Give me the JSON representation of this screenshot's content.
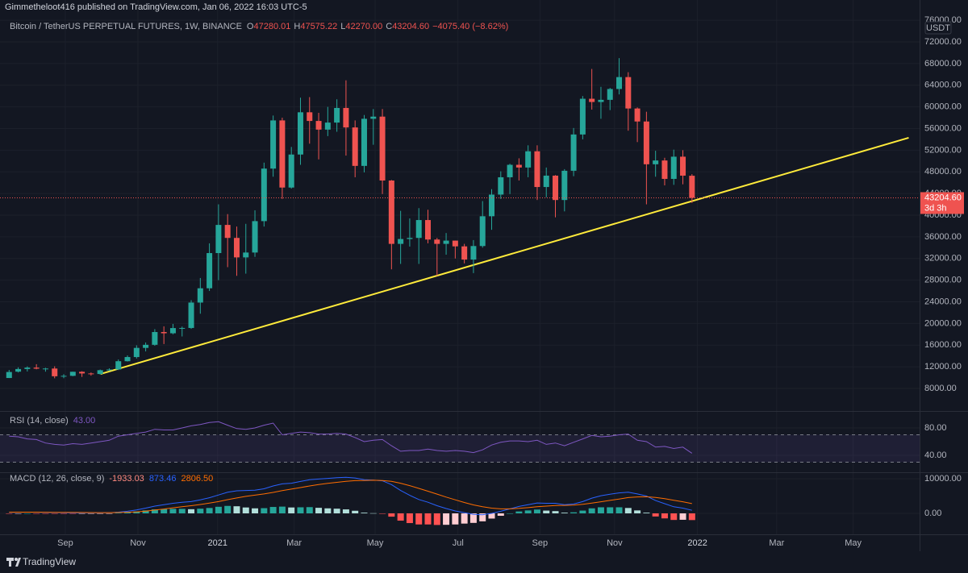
{
  "header": {
    "publisher": "Gimmetheloot416 published on TradingView.com, Jan 06, 2022 16:03 UTC-5"
  },
  "footer": {
    "brand": "TradingView"
  },
  "chart_data": [
    {
      "type": "candlestick",
      "title": "Bitcoin / TetherUS PERPETUAL FUTURES, 1W, BINANCE",
      "legend": [
        {
          "key": "O",
          "value": "47280.01"
        },
        {
          "key": "H",
          "value": "47575.22"
        },
        {
          "key": "L",
          "value": "42270.00"
        },
        {
          "key": "C",
          "value": "43204.60"
        }
      ],
      "change": "−4075.40 (−8.62%)",
      "unit": "USDT",
      "up_color": "#26a69a",
      "down_color": "#ef5350",
      "grid": true,
      "open": [
        9930,
        11100,
        11590,
        11850,
        11650,
        11680,
        10250,
        10330,
        11080,
        10770,
        10670,
        11370,
        11500,
        13030,
        13800,
        15490,
        16060,
        18420,
        18190,
        19150,
        19170,
        23860,
        26500,
        33000,
        38200,
        35800,
        32200,
        33100,
        38900,
        48600,
        57500,
        45100,
        51200,
        59000,
        57400,
        55800,
        57100,
        59800,
        56200,
        49100,
        57800,
        58200,
        46400,
        34700,
        35600,
        35800,
        39100,
        35500,
        34700,
        35300,
        34240,
        31800,
        34300,
        39800,
        43800,
        47000,
        49300,
        48800,
        51800,
        45200,
        47300,
        42800,
        48200,
        54900,
        61500,
        60900,
        61300,
        63300,
        65500,
        59700,
        57300,
        49400,
        50100,
        46700,
        50800,
        47280.01
      ],
      "high": [
        11420,
        11900,
        12080,
        12480,
        11820,
        12090,
        10630,
        11100,
        11180,
        10950,
        11490,
        11720,
        13350,
        14100,
        15970,
        16490,
        18950,
        19470,
        19920,
        19420,
        24300,
        28400,
        34800,
        42000,
        40200,
        37900,
        38400,
        40900,
        49700,
        58400,
        58000,
        52600,
        61700,
        61800,
        58900,
        60000,
        61400,
        64900,
        57500,
        58500,
        59600,
        59600,
        46500,
        40800,
        39400,
        41300,
        41000,
        35800,
        36700,
        35300,
        34700,
        35400,
        42600,
        44800,
        48100,
        49500,
        50500,
        52900,
        52900,
        48800,
        47400,
        48500,
        56100,
        62000,
        67000,
        63700,
        63500,
        69000,
        66400,
        59900,
        59100,
        51900,
        50600,
        52100,
        52000,
        47575.22
      ],
      "low": [
        9920,
        10950,
        11130,
        11530,
        11100,
        9880,
        9890,
        10260,
        10130,
        10370,
        10540,
        11220,
        11400,
        12970,
        13520,
        14840,
        15880,
        16200,
        18000,
        17600,
        19000,
        21800,
        26000,
        28000,
        30400,
        28800,
        29200,
        32300,
        37900,
        47100,
        43000,
        44900,
        49300,
        53200,
        50300,
        54600,
        55400,
        51000,
        47000,
        47900,
        53000,
        43900,
        30000,
        31000,
        34200,
        31000,
        34800,
        28800,
        32700,
        32000,
        31100,
        29300,
        34000,
        37300,
        43000,
        43900,
        46400,
        47000,
        42800,
        43300,
        39600,
        40700,
        47200,
        54000,
        59500,
        57800,
        59400,
        62300,
        55600,
        53500,
        42000,
        47100,
        45500,
        45600,
        45700,
        42270
      ],
      "close": [
        11040,
        11590,
        11850,
        11650,
        11680,
        10250,
        10330,
        11080,
        10770,
        10670,
        11370,
        11500,
        13030,
        13800,
        15490,
        16060,
        18420,
        18190,
        19150,
        19170,
        23860,
        26500,
        33000,
        38200,
        35800,
        32200,
        33100,
        38900,
        48600,
        57500,
        45100,
        51200,
        59000,
        57400,
        55800,
        57100,
        59800,
        56200,
        49100,
        57800,
        58200,
        46400,
        34700,
        35600,
        35800,
        39100,
        35500,
        34700,
        35300,
        34240,
        31800,
        34300,
        39800,
        43800,
        47000,
        49300,
        48800,
        51800,
        45200,
        47300,
        42800,
        48200,
        54900,
        61500,
        60900,
        61300,
        63300,
        65500,
        59700,
        57300,
        49400,
        50100,
        46700,
        50800,
        47300,
        43204.6
      ],
      "xlim": [
        -1,
        100
      ],
      "xticks": [
        {
          "value": 6.17,
          "label": "Sep"
        },
        {
          "value": 14.15,
          "label": "Nov"
        },
        {
          "value": 22.9,
          "label": "2021"
        },
        {
          "value": 31.3,
          "label": "Mar"
        },
        {
          "value": 40.2,
          "label": "May"
        },
        {
          "value": 49.3,
          "label": "Jul"
        },
        {
          "value": 58.3,
          "label": "Sep"
        },
        {
          "value": 66.5,
          "label": "Nov"
        },
        {
          "value": 75.6,
          "label": "2022"
        },
        {
          "value": 84.3,
          "label": "Mar"
        },
        {
          "value": 92.7,
          "label": "May"
        }
      ],
      "ylim": [
        3833,
        79736
      ],
      "yticks": [
        {
          "value": 8000,
          "label": "8000.00"
        },
        {
          "value": 12000,
          "label": "12000.00"
        },
        {
          "value": 16000,
          "label": "16000.00"
        },
        {
          "value": 20000,
          "label": "20000.00"
        },
        {
          "value": 24000,
          "label": "24000.00"
        },
        {
          "value": 28000,
          "label": "28000.00"
        },
        {
          "value": 32000,
          "label": "32000.00"
        },
        {
          "value": 36000,
          "label": "36000.00"
        },
        {
          "value": 40000,
          "label": "40000.00"
        },
        {
          "value": 44000,
          "label": "44000.00"
        },
        {
          "value": 48000,
          "label": "48000.00"
        },
        {
          "value": 52000,
          "label": "52000.00"
        },
        {
          "value": 56000,
          "label": "56000.00"
        },
        {
          "value": 60000,
          "label": "60000.00"
        },
        {
          "value": 64000,
          "label": "64000.00"
        },
        {
          "value": 68000,
          "label": "68000.00"
        },
        {
          "value": 72000,
          "label": "72000.00"
        },
        {
          "value": 76000,
          "label": "76000.00"
        }
      ],
      "last_price": {
        "value": 43204.6,
        "label": "43204.60",
        "countdown": "3d 3h",
        "color": "#ef5350"
      },
      "annotations": [
        {
          "type": "line",
          "x": [
            10.07,
            98.8
          ],
          "y": [
            10680,
            54290
          ],
          "color": "#ffeb3b"
        }
      ]
    },
    {
      "type": "line",
      "title": "RSI (14, close)",
      "levels": [
        70,
        30
      ],
      "band_color": "#7e57c2",
      "series": [
        {
          "color": "#7e57c2",
          "last_value_label": "43.00",
          "values": [
            68,
            67,
            64,
            63,
            58,
            56,
            55,
            57,
            56,
            58,
            60,
            62,
            68,
            70,
            72,
            74,
            78,
            77,
            77,
            80,
            83,
            85,
            88,
            89,
            84,
            79,
            78,
            80,
            84,
            87,
            70,
            72,
            74,
            73,
            71,
            71,
            72,
            71,
            66,
            60,
            62,
            63,
            54,
            46,
            47,
            47,
            49,
            47,
            46,
            47,
            46,
            44,
            48,
            55,
            59,
            61,
            61,
            60,
            62,
            56,
            58,
            54,
            59,
            64,
            69,
            67,
            68,
            70,
            71,
            62,
            60,
            52,
            53,
            50,
            52,
            43
          ]
        }
      ],
      "ylim": [
        15.3,
        103.5
      ],
      "yticks": [
        {
          "value": 80,
          "label": "80.00"
        },
        {
          "value": 40,
          "label": "40.00"
        }
      ]
    },
    {
      "type": "macd",
      "title": "MACD (12, 26, close, 9)",
      "histogram": {
        "last_value_label": "-1933.03",
        "colors": [
          "#26a69a",
          "#b2dfdb",
          "#ff5252",
          "#ffcdd2"
        ],
        "values": [
          -50,
          -20,
          0,
          -10,
          -30,
          -60,
          -90,
          -90,
          -80,
          -60,
          -40,
          -20,
          100,
          280,
          550,
          850,
          1150,
          1250,
          1300,
          1300,
          1200,
          1350,
          1550,
          1900,
          2150,
          2050,
          1700,
          1450,
          1500,
          1850,
          1950,
          1700,
          1750,
          1800,
          1600,
          1450,
          1350,
          1150,
          750,
          200,
          50,
          -100,
          -950,
          -2100,
          -2800,
          -3200,
          -3200,
          -3350,
          -3300,
          -3200,
          -2950,
          -2750,
          -2300,
          -1500,
          -700,
          0,
          550,
          850,
          1100,
          800,
          650,
          200,
          300,
          800,
          1450,
          1750,
          1750,
          1750,
          1550,
          850,
          200,
          -900,
          -1450,
          -1900,
          -1850,
          -1933.03
        ]
      },
      "series": [
        {
          "color": "#2962ff",
          "last_value_label": "873.46",
          "values": [
            300,
            320,
            340,
            330,
            300,
            250,
            200,
            180,
            170,
            170,
            180,
            200,
            350,
            600,
            1000,
            1500,
            2100,
            2500,
            2900,
            3200,
            3400,
            3900,
            4500,
            5300,
            6100,
            6500,
            6600,
            6700,
            7100,
            7900,
            8500,
            8700,
            9200,
            9700,
            9900,
            10100,
            10300,
            10400,
            10200,
            9700,
            9600,
            9400,
            8300,
            6600,
            5200,
            4000,
            3200,
            2200,
            1400,
            700,
            200,
            -300,
            -400,
            0,
            600,
            1300,
            2000,
            2500,
            3000,
            2900,
            2900,
            2500,
            2700,
            3400,
            4400,
            5100,
            5500,
            5900,
            6100,
            5600,
            5000,
            3700,
            2800,
            1900,
            1500,
            873.46
          ]
        },
        {
          "color": "#ff6d00",
          "last_value_label": "2806.50",
          "values": [
            350,
            340,
            340,
            340,
            330,
            310,
            290,
            270,
            250,
            230,
            220,
            220,
            250,
            320,
            450,
            650,
            950,
            1250,
            1600,
            1900,
            2200,
            2550,
            2950,
            3400,
            3950,
            4450,
            4900,
            5250,
            5600,
            6050,
            6550,
            7000,
            7450,
            7900,
            8300,
            8650,
            8950,
            9250,
            9450,
            9500,
            9550,
            9500,
            9250,
            8700,
            8000,
            7200,
            6400,
            5550,
            4700,
            3900,
            3150,
            2450,
            1900,
            1500,
            1300,
            1300,
            1450,
            1650,
            1900,
            2100,
            2250,
            2300,
            2400,
            2600,
            2950,
            3350,
            3750,
            4150,
            4550,
            4750,
            4800,
            4600,
            4250,
            3800,
            3350,
            2806.5
          ]
        }
      ],
      "ylim": [
        -6047,
        11628
      ],
      "yticks": [
        {
          "value": 10000,
          "label": "10000.00"
        },
        {
          "value": 0,
          "label": "0.00"
        }
      ]
    }
  ]
}
